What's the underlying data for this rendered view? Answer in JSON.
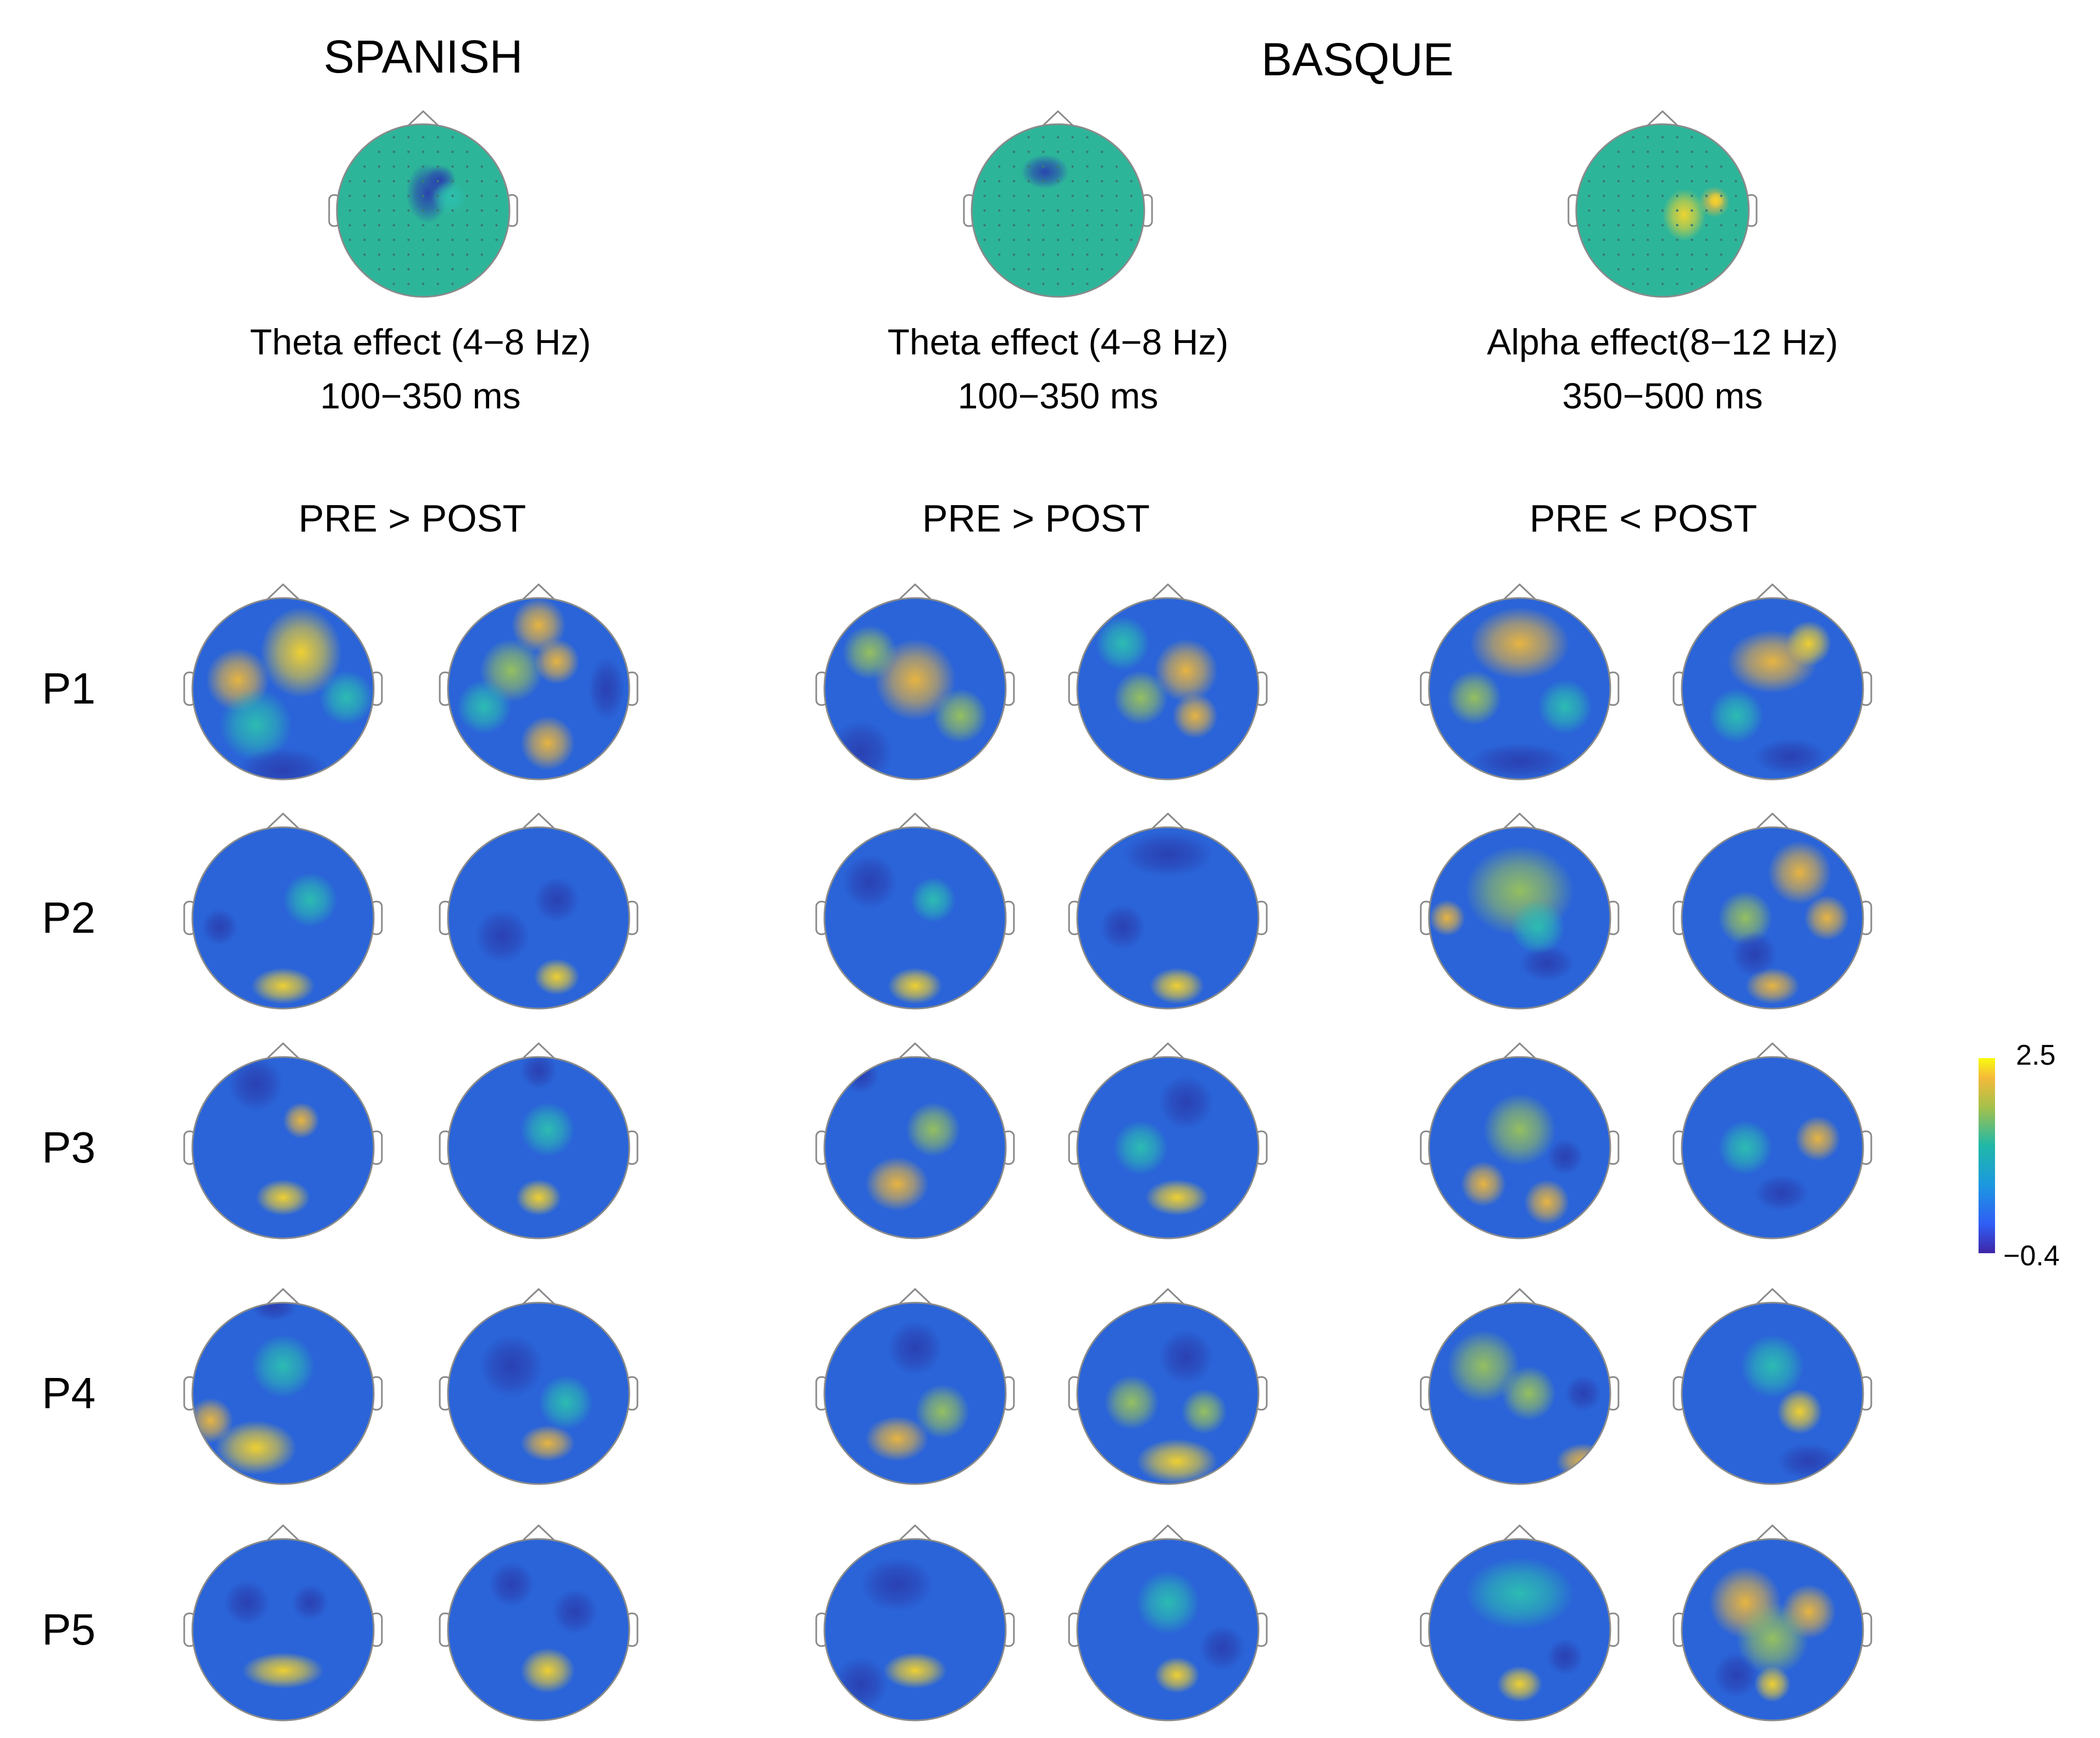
{
  "languages": {
    "spanish": "SPANISH",
    "basque": "BASQUE"
  },
  "effects": [
    {
      "line1": "Theta effect (4−8 Hz)",
      "line2": "100−350 ms"
    },
    {
      "line1": "Theta effect (4−8 Hz)",
      "line2": "100−350 ms"
    },
    {
      "line1": "Alpha effect(8−12 Hz)",
      "line2": "350−500 ms"
    }
  ],
  "conditions": [
    "PRE > POST",
    "PRE > POST",
    "PRE <  POST"
  ],
  "participants": [
    "P1",
    "P2",
    "P3",
    "P4",
    "P5"
  ],
  "colorbar": {
    "max": "2.5",
    "min": "−0.4"
  },
  "colors": {
    "low": "#3e26a8",
    "mid": "#1fb8a8",
    "high": "#f9fb0e",
    "outline": "#8a8a8a"
  }
}
